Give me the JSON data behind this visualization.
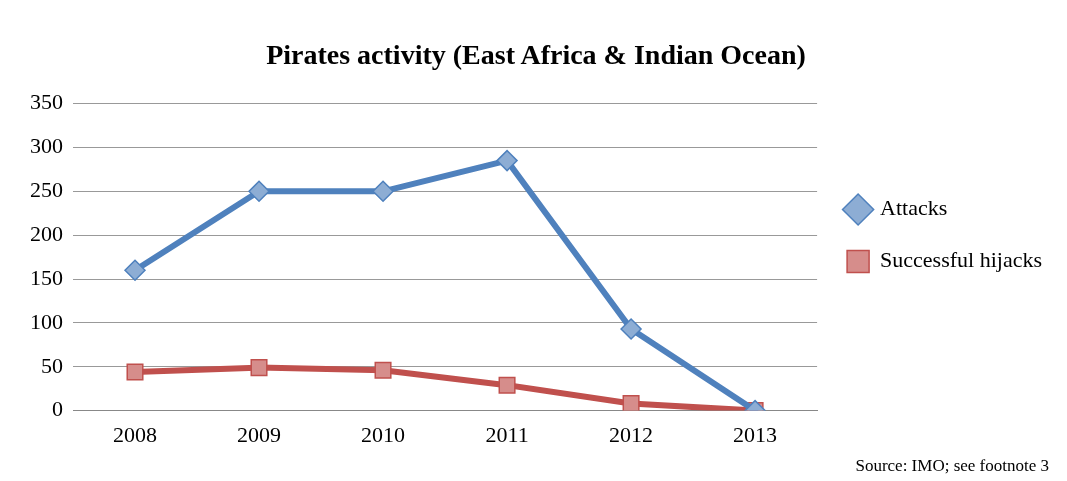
{
  "chart_data": {
    "type": "line",
    "title": "Pirates activity (East Africa & Indian Ocean)",
    "categories": [
      "2008",
      "2009",
      "2010",
      "2011",
      "2012",
      "2013"
    ],
    "series": [
      {
        "name": "Attacks",
        "color": "#4f81bd",
        "values": [
          160,
          250,
          250,
          285,
          93,
          0
        ],
        "marker": "diamond"
      },
      {
        "name": "Successful hijacks",
        "color": "#c0504d",
        "values": [
          44,
          49,
          46,
          29,
          8,
          0
        ],
        "marker": "square"
      }
    ],
    "ylim": [
      0,
      350
    ],
    "yticks": [
      0,
      50,
      100,
      150,
      200,
      250,
      300,
      350
    ],
    "grid": "y",
    "legend": "right",
    "annotations": [
      "Source: IMO; see footnote 3"
    ]
  }
}
